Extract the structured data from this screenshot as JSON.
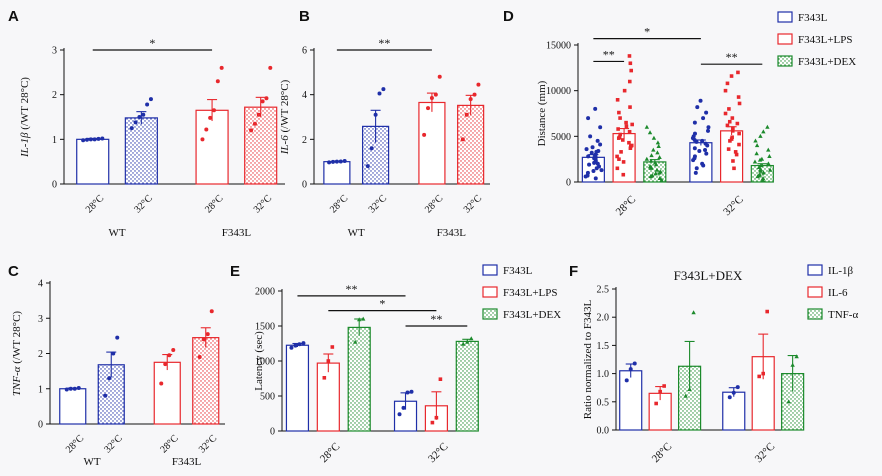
{
  "colors": {
    "blue": "#1f2fa8",
    "red": "#e8282d",
    "green": "#1c8a2c",
    "axis": "#111111"
  },
  "chart_data": [
    {
      "panel": "A",
      "type": "bar",
      "ylabel": "IL-1β (/WT 28°C)",
      "ylabel_main": "IL-1β",
      "ylabel_unit": "(/WT 28°C)",
      "ylim": [
        0,
        3
      ],
      "yticks": [
        0,
        1,
        2,
        3
      ],
      "groups": [
        {
          "label": "WT",
          "bars": [
            {
              "label": "28°C",
              "color": "blue",
              "pattern": "plain",
              "value": 1.0,
              "err": 0.02,
              "points": [
                0.98,
                0.99,
                1.0,
                1.0,
                1.01,
                1.02
              ]
            },
            {
              "label": "32°C",
              "color": "blue",
              "pattern": "dots",
              "value": 1.48,
              "err": 0.14,
              "points": [
                1.25,
                1.38,
                1.5,
                1.55,
                1.78,
                1.9
              ]
            }
          ]
        },
        {
          "label": "F343L",
          "bars": [
            {
              "label": "28°C",
              "color": "red",
              "pattern": "plain",
              "value": 1.65,
              "err": 0.24,
              "points": [
                1.0,
                1.22,
                1.48,
                1.65,
                2.3,
                2.6
              ]
            },
            {
              "label": "32°C",
              "color": "red",
              "pattern": "dots",
              "value": 1.72,
              "err": 0.22,
              "points": [
                1.2,
                1.35,
                1.55,
                1.85,
                1.92,
                2.6
              ]
            }
          ]
        }
      ],
      "significance": [
        {
          "from": [
            0,
            0
          ],
          "to": [
            1,
            0
          ],
          "label": "*",
          "y": 3.0
        }
      ]
    },
    {
      "panel": "B",
      "type": "bar",
      "ylabel": "IL-6 (/WT 28°C)",
      "ylabel_main": "IL-6",
      "ylabel_unit": "(/WT 28°C)",
      "ylim": [
        0,
        6
      ],
      "yticks": [
        0,
        2,
        4,
        6
      ],
      "groups": [
        {
          "label": "WT",
          "bars": [
            {
              "label": "28°C",
              "color": "blue",
              "pattern": "plain",
              "value": 1.0,
              "err": 0.03,
              "points": [
                0.97,
                0.99,
                1.0,
                1.01,
                1.03
              ]
            },
            {
              "label": "32°C",
              "color": "blue",
              "pattern": "dots",
              "value": 2.58,
              "err": 0.72,
              "points": [
                0.8,
                1.6,
                3.1,
                4.05,
                4.25
              ]
            }
          ]
        },
        {
          "label": "F343L",
          "bars": [
            {
              "label": "28°C",
              "color": "red",
              "pattern": "plain",
              "value": 3.65,
              "err": 0.42,
              "points": [
                2.2,
                3.4,
                3.85,
                4.0,
                4.8
              ]
            },
            {
              "label": "32°C",
              "color": "red",
              "pattern": "dots",
              "value": 3.52,
              "err": 0.45,
              "points": [
                2.0,
                3.1,
                3.8,
                4.0,
                4.45
              ]
            }
          ]
        }
      ],
      "significance": [
        {
          "from": [
            0,
            0
          ],
          "to": [
            1,
            0
          ],
          "label": "**",
          "y": 6.0
        }
      ]
    },
    {
      "panel": "C",
      "type": "bar",
      "ylabel": "TNF-α (/WT 28°C)",
      "ylabel_main": "TNF-α",
      "ylabel_unit": "(/WT 28°C)",
      "ylim": [
        0,
        4
      ],
      "yticks": [
        0,
        1,
        2,
        3,
        4
      ],
      "groups": [
        {
          "label": "WT",
          "bars": [
            {
              "label": "28°C",
              "color": "blue",
              "pattern": "plain",
              "value": 1.0,
              "err": 0.02,
              "points": [
                0.98,
                1.0,
                1.0,
                1.02
              ]
            },
            {
              "label": "32°C",
              "color": "blue",
              "pattern": "dots",
              "value": 1.68,
              "err": 0.36,
              "points": [
                0.8,
                1.3,
                2.0,
                2.45
              ]
            }
          ]
        },
        {
          "label": "F343L",
          "bars": [
            {
              "label": "28°C",
              "color": "red",
              "pattern": "plain",
              "value": 1.75,
              "err": 0.22,
              "points": [
                1.15,
                1.7,
                1.95,
                2.1
              ]
            },
            {
              "label": "32°C",
              "color": "red",
              "pattern": "dots",
              "value": 2.45,
              "err": 0.28,
              "points": [
                1.9,
                2.4,
                2.55,
                3.2
              ]
            }
          ]
        }
      ],
      "significance": []
    },
    {
      "panel": "D",
      "type": "bar",
      "ylabel": "Distance (mm)",
      "ylim": [
        0,
        15000
      ],
      "yticks": [
        0,
        5000,
        10000,
        15000
      ],
      "groups": [
        {
          "label": "28°C",
          "bars": [
            {
              "label": "F343L",
              "color": "blue",
              "pattern": "plain",
              "value": 2700,
              "err": 300,
              "points": [
                400,
                700,
                1000,
                1300,
                1500,
                1700,
                1900,
                2100,
                2300,
                2500,
                2600,
                2800,
                3000,
                3200,
                3400,
                3600,
                3800,
                4100,
                4500,
                5000,
                6000,
                7000,
                8000,
                600,
                1200,
                2000,
                2700,
                3300
              ]
            },
            {
              "label": "F343L+LPS",
              "color": "red",
              "pattern": "plain",
              "value": 5300,
              "err": 550,
              "points": [
                800,
                1500,
                2200,
                2800,
                3300,
                3700,
                4000,
                4300,
                4600,
                4900,
                5200,
                5500,
                5800,
                6100,
                6500,
                7000,
                7600,
                8200,
                9000,
                10000,
                11000,
                12200,
                13000,
                13800,
                2500,
                3900,
                4800,
                6300
              ]
            },
            {
              "label": "F343L+DEX",
              "color": "green",
              "pattern": "dots",
              "value": 2200,
              "err": 250,
              "points": [
                200,
                400,
                700,
                900,
                1100,
                1300,
                1500,
                1700,
                1900,
                2100,
                2300,
                2500,
                2700,
                2900,
                3200,
                3500,
                3900,
                4300,
                4800,
                5400,
                6000,
                600,
                1000,
                1600
              ]
            }
          ]
        },
        {
          "label": "32°C",
          "bars": [
            {
              "label": "F343L",
              "color": "blue",
              "pattern": "plain",
              "value": 4300,
              "err": 300,
              "points": [
                1000,
                1500,
                2000,
                2400,
                2800,
                3100,
                3400,
                3700,
                4000,
                4200,
                4400,
                4600,
                4800,
                5000,
                5300,
                5600,
                6000,
                6500,
                7000,
                7600,
                8200,
                8900,
                1800,
                2600,
                3500,
                4500
              ]
            },
            {
              "label": "F343L+LPS",
              "color": "red",
              "pattern": "plain",
              "value": 5600,
              "err": 450,
              "points": [
                1500,
                2300,
                3000,
                3600,
                4100,
                4500,
                4900,
                5300,
                5600,
                5900,
                6200,
                6600,
                7000,
                7500,
                8000,
                8600,
                9300,
                10000,
                10800,
                11600,
                12000,
                3300,
                4700,
                6400
              ]
            },
            {
              "label": "F343L+DEX",
              "color": "green",
              "pattern": "dots",
              "value": 1800,
              "err": 200,
              "points": [
                200,
                400,
                600,
                800,
                1000,
                1200,
                1400,
                1600,
                1800,
                2000,
                2200,
                2500,
                2800,
                3100,
                3500,
                4000,
                4500,
                5000,
                5500,
                6000,
                700,
                1300,
                1900,
                2400
              ]
            }
          ]
        }
      ],
      "significance": [
        {
          "from": [
            0,
            0
          ],
          "to": [
            0,
            1
          ],
          "label": "**",
          "y": 13200
        },
        {
          "from": [
            0,
            0
          ],
          "to": [
            1,
            0
          ],
          "label": "*",
          "y": 15700
        },
        {
          "from": [
            1,
            0
          ],
          "to": [
            1,
            2
          ],
          "label": "**",
          "y": 12900
        }
      ],
      "legend": [
        "F343L",
        "F343L+LPS",
        "F343L+DEX"
      ]
    },
    {
      "panel": "E",
      "type": "bar",
      "ylabel": "Latency (sec)",
      "ylim": [
        0,
        2000
      ],
      "yticks": [
        0,
        500,
        1000,
        1500,
        2000
      ],
      "groups": [
        {
          "label": "28°C",
          "bars": [
            {
              "label": "F343L",
              "color": "blue",
              "pattern": "plain",
              "value": 1225,
              "err": 25,
              "points": [
                1190,
                1220,
                1240,
                1255
              ]
            },
            {
              "label": "F343L+LPS",
              "color": "red",
              "pattern": "plain",
              "value": 970,
              "err": 130,
              "points": [
                760,
                1000,
                1200
              ]
            },
            {
              "label": "F343L+DEX",
              "color": "green",
              "pattern": "dots",
              "value": 1480,
              "err": 120,
              "points": [
                1270,
                1590,
                1600
              ]
            }
          ]
        },
        {
          "label": "32°C",
          "bars": [
            {
              "label": "F343L",
              "color": "blue",
              "pattern": "plain",
              "value": 425,
              "err": 120,
              "points": [
                240,
                330,
                550,
                560
              ]
            },
            {
              "label": "F343L+LPS",
              "color": "red",
              "pattern": "plain",
              "value": 360,
              "err": 200,
              "points": [
                120,
                190,
                740
              ]
            },
            {
              "label": "F343L+DEX",
              "color": "green",
              "pattern": "dots",
              "value": 1280,
              "err": 30,
              "points": [
                1240,
                1270,
                1320
              ]
            }
          ]
        }
      ],
      "significance": [
        {
          "from": [
            0,
            0
          ],
          "to": [
            1,
            0
          ],
          "label": "**",
          "y": 1930
        },
        {
          "from": [
            0,
            1
          ],
          "to": [
            1,
            1
          ],
          "label": "*",
          "y": 1720
        },
        {
          "from": [
            1,
            0
          ],
          "to": [
            1,
            2
          ],
          "label": "**",
          "y": 1500
        }
      ],
      "legend": [
        "F343L",
        "F343L+LPS",
        "F343L+DEX"
      ]
    },
    {
      "panel": "F",
      "type": "bar",
      "title": "F343L+DEX",
      "ylabel": "Ratio normalized to F343L",
      "ylim": [
        0,
        2.5
      ],
      "yticks": [
        0.0,
        0.5,
        1.0,
        1.5,
        2.0,
        2.5
      ],
      "ytick_decimals": 1,
      "groups": [
        {
          "label": "28°C",
          "bars": [
            {
              "label": "IL-1β",
              "color": "blue",
              "pattern": "plain",
              "value": 1.05,
              "err": 0.12,
              "points": [
                0.88,
                1.08,
                1.18
              ]
            },
            {
              "label": "IL-6",
              "color": "red",
              "pattern": "plain",
              "value": 0.65,
              "err": 0.12,
              "points": [
                0.47,
                0.68,
                0.78
              ]
            },
            {
              "label": "TNF-α",
              "color": "green",
              "pattern": "dots",
              "value": 1.13,
              "err": 0.44,
              "points": [
                0.6,
                0.72,
                2.08
              ]
            }
          ]
        },
        {
          "label": "32°C",
          "bars": [
            {
              "label": "IL-1β",
              "color": "blue",
              "pattern": "plain",
              "value": 0.67,
              "err": 0.08,
              "points": [
                0.58,
                0.66,
                0.76
              ]
            },
            {
              "label": "IL-6",
              "color": "red",
              "pattern": "plain",
              "value": 1.3,
              "err": 0.4,
              "points": [
                0.95,
                1.0,
                2.1
              ]
            },
            {
              "label": "TNF-α",
              "color": "green",
              "pattern": "dots",
              "value": 1.0,
              "err": 0.32,
              "points": [
                0.5,
                1.15,
                1.3
              ]
            }
          ]
        }
      ],
      "significance": [],
      "legend": [
        "IL-1β",
        "IL-6",
        "TNF-α"
      ]
    }
  ]
}
